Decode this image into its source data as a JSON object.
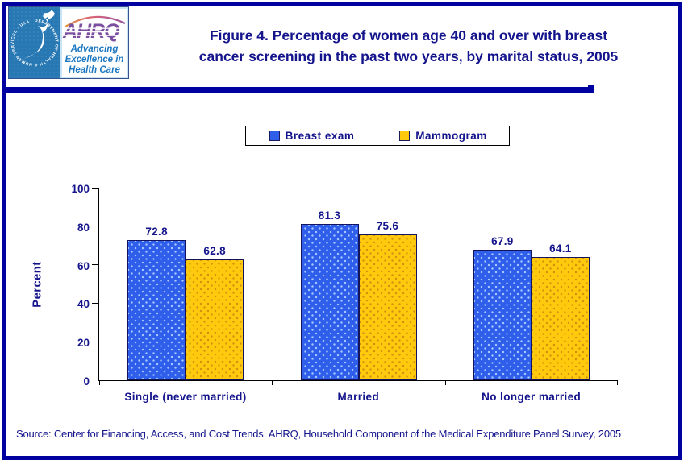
{
  "header": {
    "logo": {
      "hhs_circle_text": "DEPARTMENT OF HEALTH & HUMAN SERVICES · USA",
      "ahrq_acronym": "AHRQ",
      "tagline_line1": "Advancing",
      "tagline_line2": "Excellence in",
      "tagline_line3": "Health Care"
    },
    "title_line1": "Figure 4. Percentage of women age 40 and over with breast",
    "title_line2": "cancer screening in the past two years, by marital status, 2005"
  },
  "chart_data": {
    "type": "bar",
    "title": "Figure 4. Percentage of women age 40 and over with breast cancer screening in the past two years, by marital status, 2005",
    "categories": [
      "Single (never married)",
      "Married",
      "No longer married"
    ],
    "series": [
      {
        "name": "Breast exam",
        "color": "#2E5EEA",
        "values": [
          72.8,
          81.3,
          67.9
        ]
      },
      {
        "name": "Mammogram",
        "color": "#FFC90E",
        "values": [
          62.8,
          75.6,
          64.1
        ]
      }
    ],
    "ylabel": "Percent",
    "xlabel": "",
    "ylim": [
      0,
      100
    ],
    "yticks": [
      0,
      20,
      40,
      60,
      80,
      100
    ],
    "grid": false,
    "legend_position": "top-center",
    "value_labels": true
  },
  "colors": {
    "text_navy": "#14148C",
    "frame_blue": "#0000A0",
    "bar_outline": "#14145E",
    "hhs_logo_blue": "#2878B4",
    "ahrq_purple": "#7B4FA0",
    "tagline_blue": "#1C78C0"
  },
  "source": "Source: Center for Financing, Access, and Cost Trends, AHRQ, Household Component of the Medical Expenditure Panel Survey, 2005"
}
